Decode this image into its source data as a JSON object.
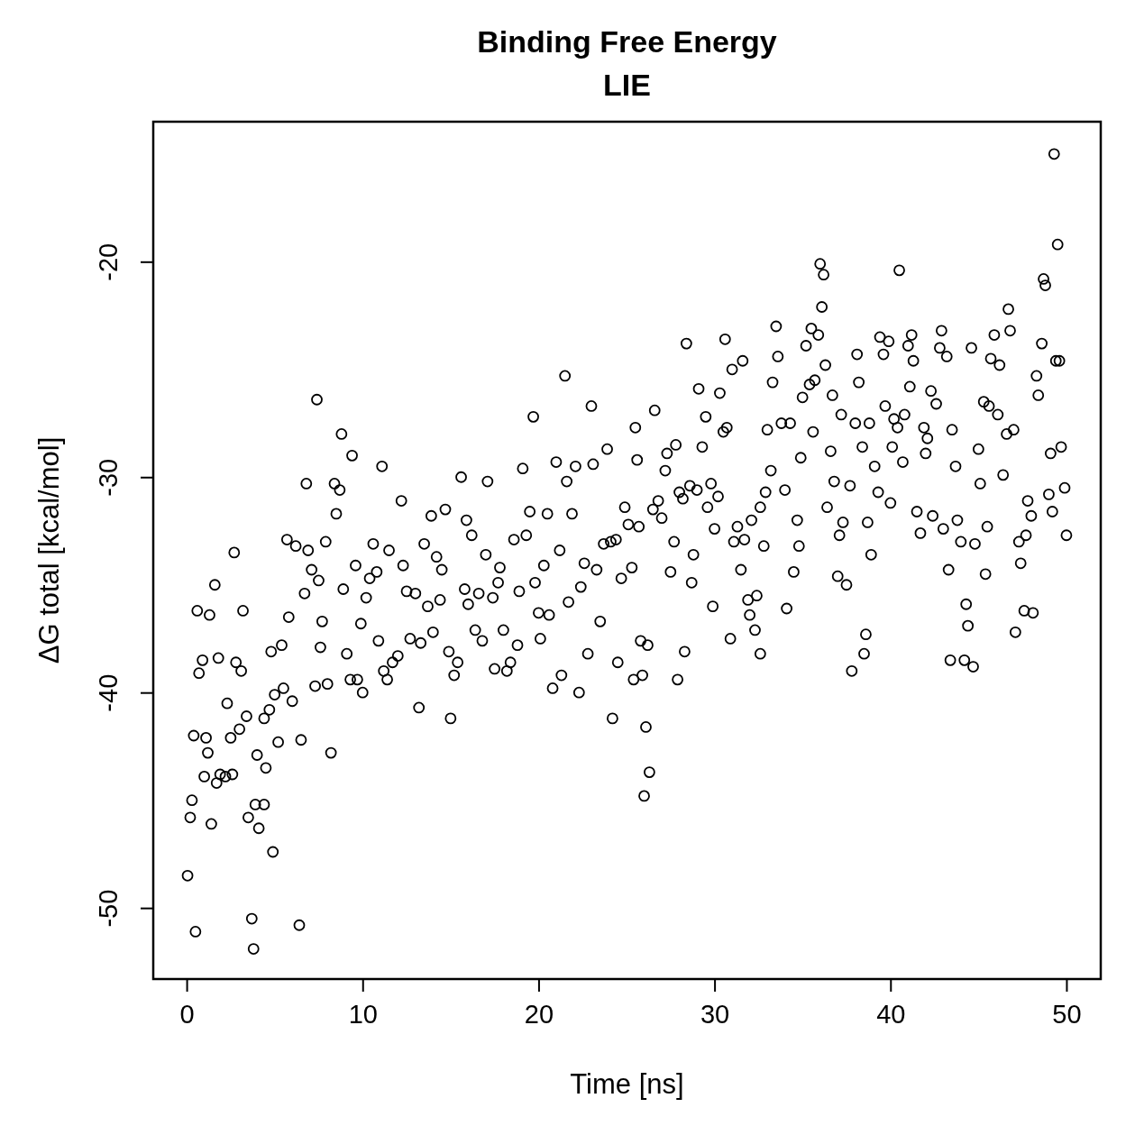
{
  "chart_data": {
    "type": "scatter",
    "title": "Binding Free Energy",
    "subtitle": "LIE",
    "xlabel": "Time [ns]",
    "ylabel": "ΔG total [kcal/mol]",
    "xlim": [
      -1.9,
      51.95
    ],
    "ylim": [
      -53.3,
      -13.5
    ],
    "xticks": [
      0,
      10,
      20,
      30,
      40,
      50
    ],
    "yticks": [
      -50,
      -40,
      -30,
      -20
    ],
    "grid": false,
    "marker": "circle",
    "series": [
      {
        "color": "#000000",
        "x": [
          0.05,
          0.2,
          0.3,
          0.4,
          0.5,
          0.6,
          0.7,
          0.9,
          1.0,
          1.1,
          1.2,
          1.3,
          1.4,
          1.6,
          1.7,
          1.8,
          1.9,
          2.2,
          2.3,
          2.5,
          2.6,
          2.7,
          2.8,
          3.0,
          3.1,
          3.2,
          3.4,
          3.5,
          3.7,
          3.8,
          3.9,
          4.0,
          4.1,
          4.4,
          4.4,
          4.5,
          4.7,
          4.8,
          4.9,
          5.0,
          5.2,
          5.4,
          5.5,
          5.7,
          5.8,
          6.0,
          6.2,
          6.4,
          6.5,
          6.7,
          6.8,
          6.9,
          7.1,
          7.3,
          7.4,
          7.5,
          7.6,
          7.7,
          7.9,
          8.0,
          8.2,
          8.4,
          8.5,
          8.7,
          8.8,
          8.9,
          9.1,
          9.3,
          9.4,
          9.6,
          9.7,
          9.9,
          10.0,
          10.2,
          10.4,
          10.6,
          10.8,
          10.9,
          11.1,
          11.2,
          11.4,
          11.5,
          11.7,
          12.0,
          12.2,
          12.3,
          12.5,
          12.7,
          13.0,
          13.2,
          13.3,
          13.5,
          13.7,
          13.9,
          14.0,
          14.2,
          14.4,
          14.5,
          14.7,
          14.9,
          15.0,
          15.2,
          15.4,
          15.6,
          15.8,
          15.9,
          16.0,
          16.2,
          16.4,
          16.6,
          16.8,
          17.0,
          17.1,
          17.4,
          17.5,
          17.7,
          17.8,
          18.0,
          18.2,
          18.4,
          18.6,
          18.8,
          18.9,
          19.1,
          19.3,
          19.5,
          19.7,
          19.8,
          20.0,
          20.1,
          20.3,
          20.5,
          20.6,
          20.8,
          21.0,
          21.2,
          21.3,
          21.5,
          21.6,
          21.7,
          21.9,
          22.1,
          22.3,
          22.4,
          22.6,
          22.8,
          23.0,
          23.1,
          23.3,
          23.5,
          23.7,
          23.9,
          24.1,
          24.2,
          24.4,
          24.5,
          24.7,
          24.9,
          25.1,
          25.3,
          25.4,
          25.5,
          25.6,
          25.7,
          25.8,
          25.9,
          26.0,
          26.1,
          26.2,
          26.3,
          26.5,
          26.6,
          26.8,
          27.0,
          27.2,
          27.3,
          27.5,
          27.7,
          27.8,
          27.9,
          28.0,
          28.2,
          28.3,
          28.4,
          28.6,
          28.7,
          28.8,
          29.0,
          29.1,
          29.3,
          29.5,
          29.6,
          29.8,
          29.9,
          30.0,
          30.2,
          30.3,
          30.5,
          30.6,
          30.7,
          30.9,
          31.0,
          31.1,
          31.3,
          31.5,
          31.6,
          31.7,
          31.9,
          32.0,
          32.1,
          32.3,
          32.4,
          32.6,
          32.6,
          32.8,
          32.9,
          33.0,
          33.2,
          33.3,
          33.5,
          33.6,
          33.8,
          34.0,
          34.1,
          34.3,
          34.5,
          34.7,
          34.8,
          34.9,
          35.0,
          35.2,
          35.4,
          35.5,
          35.6,
          35.7,
          35.9,
          36.0,
          36.1,
          36.2,
          36.3,
          36.4,
          36.6,
          36.7,
          36.8,
          37.0,
          37.1,
          37.2,
          37.3,
          37.5,
          37.7,
          37.8,
          38.0,
          38.1,
          38.2,
          38.4,
          38.5,
          38.6,
          38.7,
          38.8,
          38.9,
          39.1,
          39.3,
          39.4,
          39.6,
          39.7,
          39.9,
          40.0,
          40.1,
          40.2,
          40.4,
          40.5,
          40.7,
          40.8,
          41.0,
          41.1,
          41.2,
          41.3,
          41.5,
          41.7,
          41.9,
          42.0,
          42.1,
          42.3,
          42.4,
          42.6,
          42.8,
          42.9,
          43.0,
          43.2,
          43.3,
          43.4,
          43.5,
          43.7,
          43.8,
          44.0,
          44.2,
          44.3,
          44.4,
          44.6,
          44.7,
          44.8,
          45.0,
          45.1,
          45.3,
          45.4,
          45.5,
          45.6,
          45.7,
          45.9,
          46.1,
          46.2,
          46.4,
          46.6,
          46.7,
          46.8,
          47.0,
          47.1,
          47.3,
          47.4,
          47.6,
          47.7,
          47.8,
          48.0,
          48.1,
          48.3,
          48.4,
          48.6,
          48.7,
          48.8,
          49.0,
          49.1,
          49.2,
          49.3,
          49.4,
          49.5,
          49.6,
          49.7,
          49.9,
          50.0
        ],
        "values": [
          -48.5,
          -45.8,
          -45,
          -42,
          -51.1,
          -36.2,
          -39.1,
          -38.5,
          -43.9,
          -42.1,
          -42.8,
          -36.4,
          -46.1,
          -35,
          -44.2,
          -38.4,
          -43.8,
          -43.9,
          -40.5,
          -42.1,
          -43.8,
          -33.5,
          -38.6,
          -41.7,
          -39,
          -36.2,
          -41.1,
          -45.8,
          -50.5,
          -51.9,
          -45.2,
          -42.9,
          -46.3,
          -45.2,
          -41.2,
          -43.5,
          -40.8,
          -38.1,
          -47.4,
          -40.1,
          -42.3,
          -37.8,
          -39.8,
          -32.9,
          -36.5,
          -40.4,
          -33.2,
          -50.8,
          -42.2,
          -35.4,
          -30.3,
          -33.4,
          -34.3,
          -39.7,
          -26.4,
          -34.8,
          -37.9,
          -36.7,
          -33,
          -39.6,
          -42.8,
          -30.3,
          -31.7,
          -30.6,
          -28,
          -35.2,
          -38.2,
          -39.4,
          -29,
          -34.1,
          -39.4,
          -36.8,
          -40,
          -35.6,
          -34.7,
          -33.1,
          -34.4,
          -37.6,
          -29.5,
          -39,
          -39.4,
          -33.4,
          -38.6,
          -38.3,
          -31.1,
          -34.1,
          -35.3,
          -37.5,
          -35.4,
          -40.7,
          -37.7,
          -33.1,
          -36,
          -31.8,
          -37.2,
          -33.7,
          -35.7,
          -34.3,
          -31.5,
          -38.1,
          -41.2,
          -39.2,
          -38.6,
          -30,
          -35.2,
          -32,
          -35.9,
          -32.7,
          -37.1,
          -35.4,
          -37.6,
          -33.6,
          -30.2,
          -35.6,
          -38.9,
          -34.9,
          -34.2,
          -37.1,
          -39,
          -38.6,
          -32.9,
          -37.8,
          -35.3,
          -29.6,
          -32.7,
          -31.6,
          -27.2,
          -34.9,
          -36.3,
          -37.5,
          -34.1,
          -31.7,
          -36.4,
          -39.8,
          -29.3,
          -33.4,
          -39.2,
          -25.3,
          -30.2,
          -35.8,
          -31.7,
          -29.5,
          -40,
          -35.1,
          -34,
          -38.2,
          -26.7,
          -29.4,
          -34.3,
          -36.7,
          -33.1,
          -28.7,
          -33,
          -41.2,
          -32.9,
          -38.6,
          -34.7,
          -31.4,
          -32.2,
          -34.2,
          -39.4,
          -27.7,
          -29.2,
          -32.3,
          -37.6,
          -39.2,
          -44.8,
          -41.6,
          -37.8,
          -43.7,
          -31.5,
          -26.9,
          -31.1,
          -31.9,
          -29.7,
          -28.9,
          -34.4,
          -33,
          -28.5,
          -39.4,
          -30.7,
          -31,
          -38.1,
          -23.8,
          -30.4,
          -34.9,
          -33.6,
          -30.6,
          -25.9,
          -28.6,
          -27.2,
          -31.4,
          -30.3,
          -36,
          -32.4,
          -30.9,
          -26.1,
          -27.9,
          -23.6,
          -27.7,
          -37.5,
          -25,
          -33,
          -32.3,
          -34.3,
          -24.6,
          -32.9,
          -35.7,
          -36.4,
          -32,
          -37.1,
          -35.5,
          -31.4,
          -38.2,
          -33.2,
          -30.7,
          -27.8,
          -29.7,
          -25.6,
          -23,
          -24.4,
          -27.5,
          -30.6,
          -36.1,
          -27.5,
          -34.4,
          -32,
          -33.2,
          -29.1,
          -26.3,
          -23.9,
          -25.7,
          -23.1,
          -27.9,
          -25.5,
          -23.4,
          -20.1,
          -22.1,
          -20.6,
          -24.8,
          -31.4,
          -28.8,
          -26.2,
          -30.2,
          -34.6,
          -32.7,
          -27.1,
          -32.1,
          -35,
          -30.4,
          -39,
          -27.5,
          -24.3,
          -25.6,
          -28.6,
          -38.2,
          -37.3,
          -32.1,
          -27.5,
          -33.6,
          -29.5,
          -30.7,
          -23.5,
          -24.3,
          -26.7,
          -23.7,
          -31.2,
          -28.6,
          -27.3,
          -27.7,
          -20.4,
          -29.3,
          -27.1,
          -23.9,
          -25.8,
          -23.4,
          -24.6,
          -31.6,
          -32.6,
          -27.7,
          -28.9,
          -28.2,
          -26,
          -31.8,
          -26.6,
          -24,
          -23.2,
          -32.4,
          -24.4,
          -34.3,
          -38.5,
          -27.8,
          -29.5,
          -32,
          -33,
          -38.5,
          -35.9,
          -36.9,
          -24,
          -38.8,
          -33.1,
          -28.7,
          -30.3,
          -26.5,
          -34.5,
          -32.3,
          -26.7,
          -24.5,
          -23.4,
          -27.1,
          -24.8,
          -29.9,
          -28,
          -22.2,
          -23.2,
          -27.8,
          -37.2,
          -33,
          -34,
          -36.2,
          -32.7,
          -31.1,
          -31.8,
          -36.3,
          -25.3,
          -26.2,
          -23.8,
          -20.8,
          -21.1,
          -30.8,
          -28.9,
          -31.6,
          -15,
          -24.6,
          -19.2,
          -24.6,
          -28.6,
          -30.5,
          -32.7
        ]
      }
    ]
  }
}
